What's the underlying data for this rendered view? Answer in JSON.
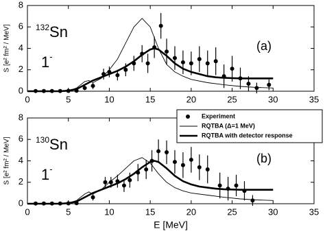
{
  "chart_data": [
    {
      "type": "line",
      "panel_label": "(a)",
      "nucleus": {
        "mass": "132",
        "symbol": "Sn"
      },
      "multipolarity": "1",
      "parity": "-",
      "ylabel": "S [e² fm² / MeV]",
      "xlim": [
        0,
        35
      ],
      "xticks": [
        0,
        5,
        10,
        15,
        20,
        25,
        30,
        35
      ],
      "ylim": [
        0,
        8
      ],
      "yticks": [
        0,
        2,
        4,
        6,
        8
      ],
      "series": [
        {
          "kind": "points",
          "color": "#000000",
          "x": [
            1,
            2,
            3,
            4,
            5,
            6,
            7,
            8,
            9.3,
            10,
            11,
            12,
            13,
            14,
            14.7,
            15.5,
            16.3,
            17,
            18,
            19,
            20,
            21,
            22,
            23,
            24,
            25,
            26,
            27,
            28,
            29.5
          ],
          "values": [
            0.02,
            0.02,
            0.02,
            0.02,
            0.03,
            0.05,
            0.3,
            0.5,
            1.6,
            1.8,
            1.5,
            2.0,
            2.6,
            3.5,
            2.6,
            4.1,
            6.1,
            3.7,
            3.1,
            2.7,
            2.6,
            3.0,
            2.6,
            2.8,
            1.4,
            2.1,
            1.2,
            0.7,
            0.3,
            0.6
          ],
          "errors": [
            0.05,
            0.05,
            0.05,
            0.05,
            0.05,
            0.1,
            0.2,
            0.3,
            0.5,
            0.5,
            0.5,
            0.6,
            0.7,
            0.8,
            0.9,
            1.0,
            1.2,
            1.2,
            1.1,
            1.1,
            1.1,
            1.2,
            1.2,
            1.3,
            1.1,
            1.2,
            1.0,
            0.7,
            0.5,
            0.5
          ]
        },
        {
          "kind": "thin",
          "color": "#000000",
          "x": [
            0,
            1,
            2,
            3,
            4,
            5,
            6,
            7,
            7.5,
            8,
            9,
            10,
            11,
            12,
            13,
            14,
            15,
            16,
            17,
            18,
            19,
            20,
            22,
            24,
            26,
            28,
            30
          ],
          "values": [
            0,
            0,
            0,
            0,
            0,
            0.05,
            0.3,
            0.9,
            1.0,
            0.8,
            1.2,
            2.0,
            3.0,
            4.5,
            6.0,
            6.8,
            6.0,
            4.0,
            2.5,
            1.8,
            1.4,
            1.1,
            0.8,
            0.6,
            0.45,
            0.35,
            0.3
          ]
        },
        {
          "kind": "thick",
          "color": "#000000",
          "x": [
            0,
            4,
            5,
            6,
            7,
            8,
            9,
            10,
            11,
            12,
            13,
            14,
            15,
            15.5,
            16,
            17,
            18,
            19,
            20,
            21,
            22,
            23,
            24,
            26,
            28,
            30
          ],
          "values": [
            0,
            0,
            0.05,
            0.2,
            0.6,
            1.0,
            1.3,
            1.6,
            1.9,
            2.3,
            2.8,
            3.4,
            3.9,
            4.0,
            3.9,
            3.3,
            2.6,
            2.1,
            1.8,
            1.6,
            1.4,
            1.3,
            1.25,
            1.2,
            1.2,
            1.2
          ]
        }
      ]
    },
    {
      "type": "line",
      "panel_label": "(b)",
      "nucleus": {
        "mass": "130",
        "symbol": "Sn"
      },
      "multipolarity": "1",
      "parity": "-",
      "ylabel": "S [e² fm² / MeV]",
      "xlabel": "E [MeV]",
      "xlim": [
        0,
        35
      ],
      "xticks": [
        0,
        5,
        10,
        15,
        20,
        25,
        30,
        35
      ],
      "ylim": [
        0,
        8
      ],
      "yticks": [
        0,
        2,
        4,
        6,
        8
      ],
      "series": [
        {
          "kind": "points",
          "name": "Experiment",
          "color": "#000000",
          "x": [
            1,
            2,
            3,
            4,
            5,
            6,
            8,
            9.5,
            10.2,
            11,
            11.8,
            12.5,
            13.5,
            14.5,
            15.2,
            16,
            17,
            18,
            19,
            20,
            21,
            22,
            23.5,
            24.5,
            25.5,
            26.5,
            27.5
          ],
          "values": [
            0.02,
            0.02,
            0.02,
            0.02,
            0.03,
            0.05,
            0.6,
            2.0,
            2.0,
            2.1,
            1.7,
            2.2,
            2.9,
            3.2,
            4.0,
            4.9,
            4.8,
            3.9,
            3.6,
            4.1,
            3.4,
            3.2,
            1.7,
            1.4,
            1.7,
            1.2,
            0.3
          ],
          "errors": [
            0.05,
            0.05,
            0.05,
            0.05,
            0.05,
            0.1,
            0.3,
            0.5,
            0.5,
            0.6,
            0.6,
            0.7,
            0.8,
            0.9,
            1.0,
            1.1,
            1.1,
            1.1,
            1.2,
            1.2,
            1.2,
            1.3,
            1.2,
            1.1,
            1.0,
            0.9,
            0.5
          ]
        },
        {
          "kind": "thin",
          "name": "RQTBA (Δ=1 MeV)",
          "color": "#000000",
          "x": [
            0,
            1,
            2,
            3,
            4,
            5,
            6,
            7,
            7.5,
            8,
            9,
            10,
            11,
            12,
            13,
            14,
            15,
            16,
            17,
            18,
            19,
            20,
            22,
            24,
            26,
            28,
            30
          ],
          "values": [
            0,
            0,
            0,
            0,
            0,
            0.05,
            0.3,
            0.9,
            1.1,
            0.9,
            1.3,
            2.0,
            2.6,
            3.3,
            4.0,
            4.3,
            3.8,
            2.8,
            2.0,
            1.5,
            1.2,
            1.0,
            0.8,
            0.6,
            0.45,
            0.35,
            0.3
          ]
        },
        {
          "kind": "thick",
          "name": "RQTBA with detector response",
          "color": "#000000",
          "x": [
            0,
            4,
            5,
            6,
            7,
            8,
            9,
            10,
            11,
            12,
            13,
            14,
            15,
            15.5,
            16,
            17,
            18,
            19,
            20,
            21,
            22,
            23,
            24,
            26,
            28,
            30
          ],
          "values": [
            0,
            0,
            0.05,
            0.2,
            0.6,
            1.0,
            1.3,
            1.6,
            1.9,
            2.3,
            2.8,
            3.4,
            3.9,
            4.0,
            3.9,
            3.3,
            2.6,
            2.1,
            1.8,
            1.6,
            1.5,
            1.4,
            1.35,
            1.3,
            1.3,
            1.3
          ]
        }
      ]
    }
  ]
}
